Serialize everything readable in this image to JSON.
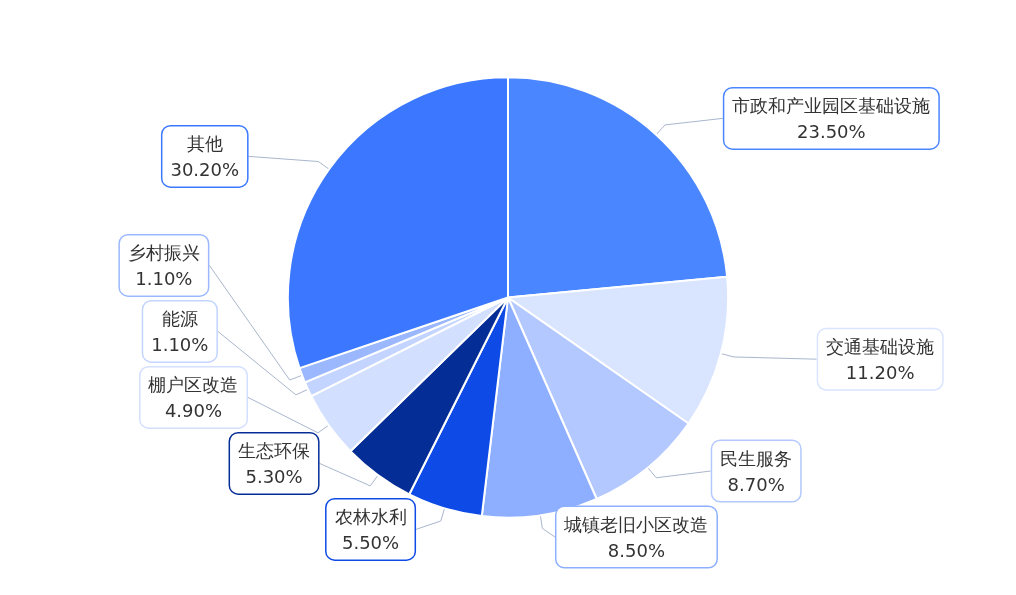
{
  "chart_data": {
    "type": "pie",
    "categories": [
      "市政和产业园区基础设施",
      "交通基础设施",
      "民生服务",
      "城镇老旧小区改造",
      "农林水利",
      "生态环保",
      "棚户区改造",
      "能源",
      "乡村振兴",
      "其他"
    ],
    "values": [
      23.5,
      11.2,
      8.7,
      8.5,
      5.5,
      5.3,
      4.9,
      1.1,
      1.1,
      30.2
    ],
    "value_labels": [
      "23.50%",
      "11.20%",
      "8.70%",
      "8.50%",
      "5.50%",
      "5.30%",
      "4.90%",
      "1.10%",
      "1.10%",
      "30.20%"
    ],
    "colors": [
      "#4a86ff",
      "#d9e4ff",
      "#b3c8ff",
      "#8eafff",
      "#0d4ae6",
      "#042d96",
      "#d3dfff",
      "#c2d4ff",
      "#9bb8ff",
      "#3b78ff"
    ],
    "legend": false
  }
}
